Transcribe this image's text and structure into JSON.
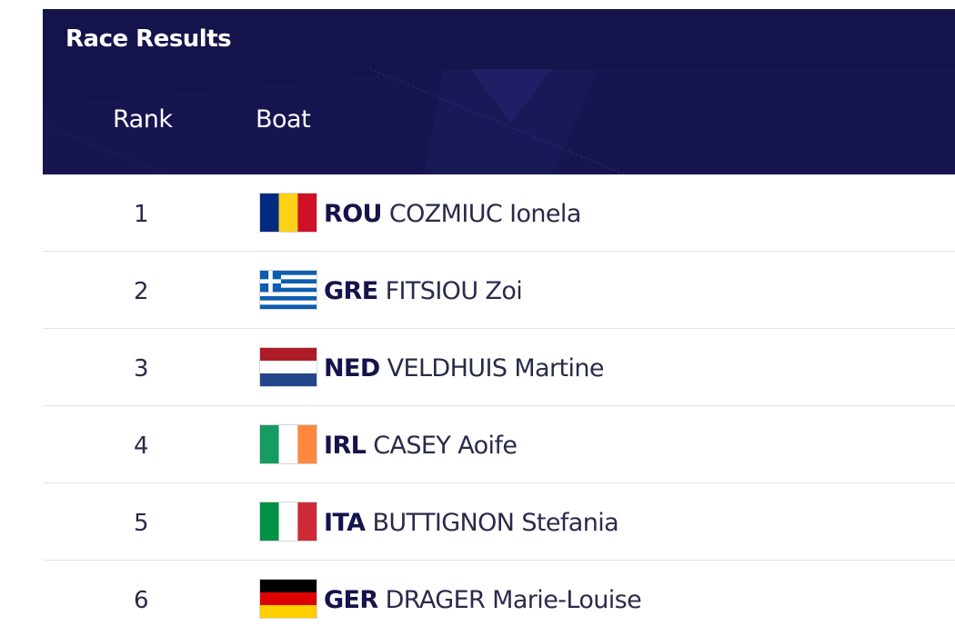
{
  "panel": {
    "title": "Race Results"
  },
  "table": {
    "columns": {
      "rank": "Rank",
      "boat": "Boat"
    },
    "rows": [
      {
        "rank": "1",
        "country": "ROU",
        "athlete": "COZMIUC Ionela",
        "flag_icon": "romania-flag-icon"
      },
      {
        "rank": "2",
        "country": "GRE",
        "athlete": "FITSIOU Zoi",
        "flag_icon": "greece-flag-icon"
      },
      {
        "rank": "3",
        "country": "NED",
        "athlete": "VELDHUIS Martine",
        "flag_icon": "netherlands-flag-icon"
      },
      {
        "rank": "4",
        "country": "IRL",
        "athlete": "CASEY Aoife",
        "flag_icon": "ireland-flag-icon"
      },
      {
        "rank": "5",
        "country": "ITA",
        "athlete": "BUTTIGNON Stefania",
        "flag_icon": "italy-flag-icon"
      },
      {
        "rank": "6",
        "country": "GER",
        "athlete": "DRAGER Marie-Louise",
        "flag_icon": "germany-flag-icon"
      }
    ]
  },
  "colors": {
    "header_bg": "#15134b",
    "header_text": "#ffffff",
    "row_text": "#2a2a4a",
    "row_divider": "#e3e3e8"
  }
}
